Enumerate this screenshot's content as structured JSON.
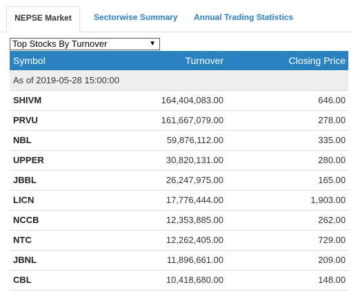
{
  "tabs": [
    {
      "label": "NEPSE Market"
    },
    {
      "label": "Sectorwise Summary"
    },
    {
      "label": "Annual Trading Statistics"
    }
  ],
  "selector": {
    "value": "Top Stocks By Turnover",
    "arrow": "▼"
  },
  "table": {
    "headers": {
      "symbol": "Symbol",
      "turnover": "Turnover",
      "closing_price": "Closing Price"
    },
    "as_of": "As of 2019-05-28 15:00:00",
    "rows": [
      {
        "symbol": "SHIVM",
        "turnover": "164,404,083.00",
        "closing_price": "646.00"
      },
      {
        "symbol": "PRVU",
        "turnover": "161,667,079.00",
        "closing_price": "278.00"
      },
      {
        "symbol": "NBL",
        "turnover": "59,876,112.00",
        "closing_price": "335.00"
      },
      {
        "symbol": "UPPER",
        "turnover": "30,820,131.00",
        "closing_price": "280.00"
      },
      {
        "symbol": "JBBL",
        "turnover": "26,247,975.00",
        "closing_price": "165.00"
      },
      {
        "symbol": "LICN",
        "turnover": "17,776,444.00",
        "closing_price": "1,903.00"
      },
      {
        "symbol": "NCCB",
        "turnover": "12,353,885.00",
        "closing_price": "262.00"
      },
      {
        "symbol": "NTC",
        "turnover": "12,262,405.00",
        "closing_price": "729.00"
      },
      {
        "symbol": "JBNL",
        "turnover": "11,896,661.00",
        "closing_price": "209.00"
      },
      {
        "symbol": "CBL",
        "turnover": "10,418,680.00",
        "closing_price": "148.00"
      }
    ]
  },
  "colors": {
    "header_bg": "#2a83c0",
    "tab_link": "#2a7dc2",
    "asof_bg": "#eeeeee"
  }
}
